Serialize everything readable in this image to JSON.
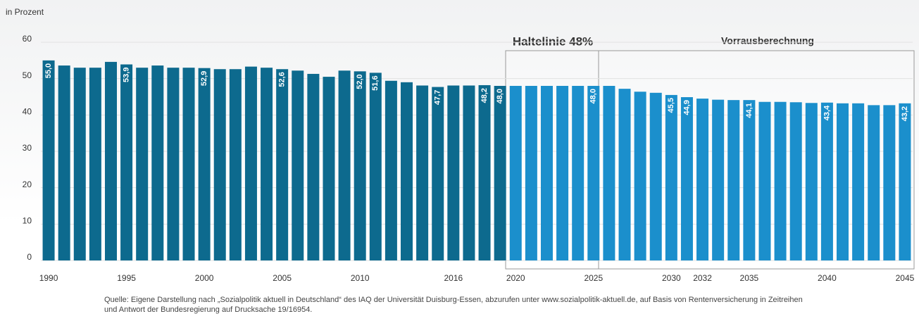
{
  "chart_data": {
    "type": "bar",
    "ylabel": "in Prozent",
    "categories": [
      "1990",
      null,
      null,
      null,
      null,
      "1995",
      null,
      null,
      null,
      null,
      "2000",
      null,
      null,
      null,
      null,
      "2005",
      null,
      null,
      null,
      null,
      "2010",
      null,
      null,
      null,
      null,
      null,
      "2016",
      null,
      null,
      null,
      "2020",
      null,
      null,
      null,
      null,
      "2025",
      null,
      null,
      null,
      null,
      "2030",
      null,
      "2032",
      null,
      null,
      "2035",
      null,
      null,
      null,
      null,
      "2040",
      null,
      null,
      null,
      null,
      "2045"
    ],
    "values": [
      55.0,
      53.6,
      53.0,
      53.0,
      54.6,
      53.9,
      53.0,
      53.6,
      53.0,
      53.0,
      52.9,
      52.6,
      52.6,
      53.3,
      53.0,
      52.6,
      52.2,
      51.3,
      50.5,
      52.2,
      52.0,
      51.6,
      49.4,
      49.0,
      48.1,
      47.7,
      48.1,
      48.1,
      48.2,
      48.0,
      48.0,
      48.0,
      48.0,
      48.0,
      48.0,
      48.0,
      48.0,
      47.2,
      46.4,
      46.1,
      45.5,
      44.9,
      44.5,
      44.2,
      44.1,
      44.1,
      43.6,
      43.6,
      43.5,
      43.3,
      43.4,
      43.2,
      43.2,
      42.7,
      42.7,
      43.2
    ],
    "value_labels": [
      "55,0",
      null,
      null,
      null,
      null,
      "53,9",
      null,
      null,
      null,
      null,
      "52,9",
      null,
      null,
      null,
      null,
      "52,6",
      null,
      null,
      null,
      null,
      "52,0",
      "51,6",
      null,
      null,
      null,
      "47,7",
      null,
      null,
      "48,2",
      "48,0",
      null,
      null,
      null,
      null,
      null,
      "48,0",
      null,
      null,
      null,
      null,
      "45,5",
      "44,9",
      null,
      null,
      null,
      "44,1",
      null,
      null,
      null,
      null,
      "43,4",
      null,
      null,
      null,
      null,
      "43,2"
    ],
    "colors": [
      "#0d6a8e",
      "#0d6a8e",
      "#0d6a8e",
      "#0d6a8e",
      "#0d6a8e",
      "#0d6a8e",
      "#0d6a8e",
      "#0d6a8e",
      "#0d6a8e",
      "#0d6a8e",
      "#0d6a8e",
      "#0d6a8e",
      "#0d6a8e",
      "#0d6a8e",
      "#0d6a8e",
      "#0d6a8e",
      "#0d6a8e",
      "#0d6a8e",
      "#0d6a8e",
      "#0d6a8e",
      "#0d6a8e",
      "#0d6a8e",
      "#0d6a8e",
      "#0d6a8e",
      "#0d6a8e",
      "#0d6a8e",
      "#0d6a8e",
      "#0d6a8e",
      "#0d6a8e",
      "#0d6a8e",
      "#1b8fcc",
      "#1b8fcc",
      "#1b8fcc",
      "#1b8fcc",
      "#1b8fcc",
      "#1b8fcc",
      "#1b8fcc",
      "#1b8fcc",
      "#1b8fcc",
      "#1b8fcc",
      "#1b8fcc",
      "#1b8fcc",
      "#1b8fcc",
      "#1b8fcc",
      "#1b8fcc",
      "#1b8fcc",
      "#1b8fcc",
      "#1b8fcc",
      "#1b8fcc",
      "#1b8fcc",
      "#1b8fcc",
      "#1b8fcc",
      "#1b8fcc",
      "#1b8fcc",
      "#1b8fcc",
      "#1b8fcc"
    ],
    "ylim": [
      0,
      60
    ],
    "yticks": [
      0,
      10,
      20,
      30,
      40,
      50,
      60
    ],
    "grid": true,
    "annotations": [
      "Haltelinie 48%",
      "Vorrausberechnung"
    ],
    "source": [
      "Quelle: Eigene Darstellung nach „Sozialpolitik aktuell in Deutschland“ des IAQ der Universität Duisburg-Essen, abzurufen unter www.sozialpolitik-aktuell.de, auf Basis von Rentenversicherung in Zeitreihen",
      "und Antwort der Bundesregierung auf Drucksache 19/16954."
    ]
  }
}
